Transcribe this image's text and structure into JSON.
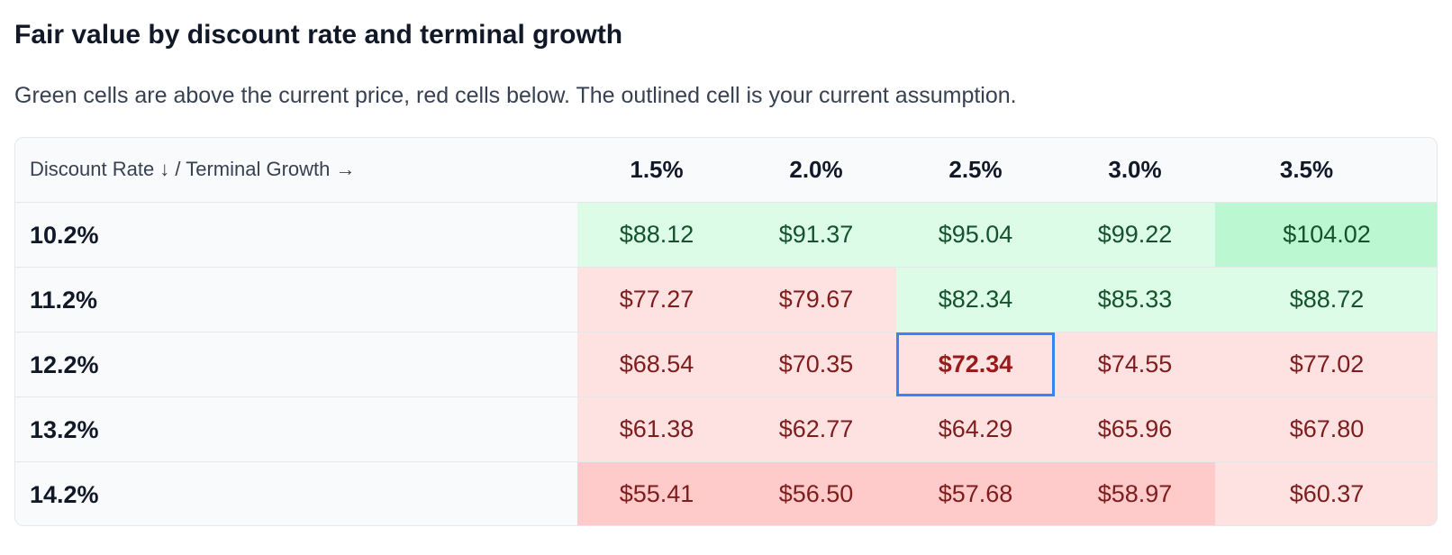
{
  "title": "Fair value by discount rate and terminal growth",
  "subtitle": "Green cells are above the current price, red cells below. The outlined cell is your current assumption.",
  "colors": {
    "above": "#dcfce7",
    "above_strong": "#bbf7d0",
    "below": "#fee2e2",
    "below_strong": "#fecaca",
    "current_outline": "#3b82f6"
  },
  "table": {
    "corner_label": "Discount Rate ↓ / Terminal Growth →",
    "columns": [
      "1.5%",
      "2.0%",
      "2.5%",
      "3.0%",
      "3.5%"
    ],
    "rows": [
      {
        "label": "10.2%",
        "cells": [
          "$88.12",
          "$91.37",
          "$95.04",
          "$99.22",
          "$104.02"
        ]
      },
      {
        "label": "11.2%",
        "cells": [
          "$77.27",
          "$79.67",
          "$82.34",
          "$85.33",
          "$88.72"
        ]
      },
      {
        "label": "12.2%",
        "cells": [
          "$68.54",
          "$70.35",
          "$72.34",
          "$74.55",
          "$77.02"
        ]
      },
      {
        "label": "13.2%",
        "cells": [
          "$61.38",
          "$62.77",
          "$64.29",
          "$65.96",
          "$67.80"
        ]
      },
      {
        "label": "14.2%",
        "cells": [
          "$55.41",
          "$56.50",
          "$57.68",
          "$58.97",
          "$60.37"
        ]
      }
    ],
    "cell_status": [
      [
        "above",
        "above",
        "above",
        "above",
        "above-strong"
      ],
      [
        "below",
        "below",
        "above",
        "above",
        "above"
      ],
      [
        "below",
        "below",
        "below",
        "below",
        "below"
      ],
      [
        "below",
        "below",
        "below",
        "below",
        "below"
      ],
      [
        "below-strong",
        "below-strong",
        "below-strong",
        "below-strong",
        "below"
      ]
    ],
    "current_cell": {
      "row": 2,
      "col": 2
    }
  }
}
